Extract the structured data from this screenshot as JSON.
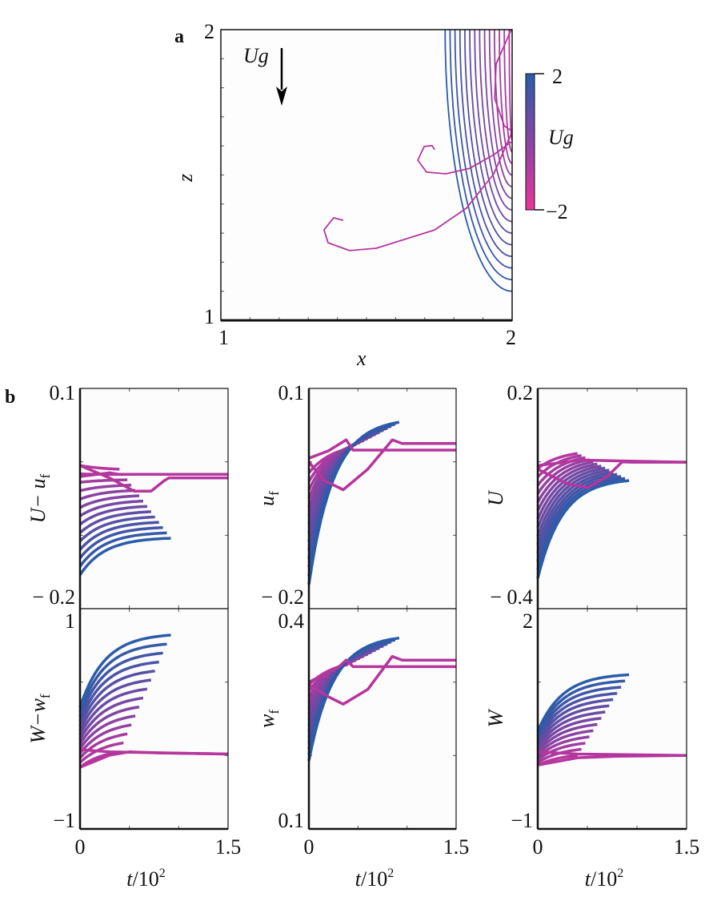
{
  "panel_labels": {
    "a": "a",
    "b": "b"
  },
  "colors": {
    "high": "#2b5ca8",
    "low": "#e8359a",
    "pink_curve": "#b5369d",
    "axes": "#111111"
  },
  "chart_data": [
    {
      "id": "a",
      "type": "line",
      "xlabel": "x",
      "ylabel": "z",
      "xlim": [
        1,
        2
      ],
      "ylim": [
        1,
        2
      ],
      "xtick_labels": [
        "1",
        "2"
      ],
      "ytick_labels": [
        "1",
        "2"
      ],
      "annotation": {
        "text": "Ug",
        "arrow": "down"
      },
      "colorbar": {
        "label": "Ug",
        "max_label": "2",
        "min_label": "−2",
        "range": [
          -2,
          2
        ]
      },
      "family": {
        "count": 14,
        "x_top": [
          1.77,
          1.99
        ],
        "z_right": [
          1.1,
          1.62
        ]
      },
      "series": [
        {
          "points": [
            [
              1.42,
              1.344
            ],
            [
              1.387,
              1.353
            ],
            [
              1.354,
              1.311
            ],
            [
              1.368,
              1.267
            ],
            [
              1.442,
              1.24
            ],
            [
              1.533,
              1.248
            ],
            [
              1.734,
              1.311
            ],
            [
              1.843,
              1.386
            ],
            [
              1.937,
              1.504
            ],
            [
              1.997,
              1.642
            ]
          ]
        },
        {
          "points": [
            [
              1.734,
              1.587
            ],
            [
              1.725,
              1.601
            ],
            [
              1.698,
              1.598
            ],
            [
              1.676,
              1.551
            ],
            [
              1.706,
              1.51
            ],
            [
              1.772,
              1.504
            ],
            [
              1.854,
              1.523
            ],
            [
              1.937,
              1.57
            ],
            [
              1.997,
              1.614
            ]
          ]
        },
        {
          "points": [
            [
              1.997,
              2.0
            ],
            [
              1.945,
              1.882
            ],
            [
              1.94,
              1.763
            ],
            [
              1.973,
              1.669
            ],
            [
              1.997,
              1.653
            ]
          ]
        }
      ]
    },
    {
      "id": "b1",
      "type": "line",
      "ylabel": "U− u_f",
      "ylabel_main": "U− u",
      "ylabel_sub": "f",
      "xlim": [
        0,
        1.5
      ],
      "ylim": [
        -0.2,
        0.1
      ],
      "ytick_labels": [
        "0.1",
        "− 0.2"
      ],
      "xtick_labels": [],
      "family": {
        "count": 14,
        "y_start": [
          -0.154,
          -0.005
        ],
        "y_end": [
          -0.104,
          -0.01
        ],
        "t_end": [
          0.92,
          0.4
        ]
      },
      "series": [
        {
          "points": [
            [
              0,
              -0.005
            ],
            [
              0.3,
              -0.022
            ],
            [
              0.55,
              -0.04
            ],
            [
              0.72,
              -0.04
            ],
            [
              0.85,
              -0.026
            ],
            [
              0.9,
              -0.022
            ],
            [
              1.5,
              -0.022
            ]
          ]
        },
        {
          "points": [
            [
              0,
              -0.02
            ],
            [
              0.3,
              -0.015
            ],
            [
              0.4,
              -0.017
            ],
            [
              1.5,
              -0.017
            ]
          ]
        }
      ]
    },
    {
      "id": "b2",
      "type": "line",
      "ylabel": "u_f",
      "ylabel_main": "u",
      "ylabel_sub": "f",
      "xlim": [
        0,
        1.5
      ],
      "ylim": [
        -0.2,
        0.1
      ],
      "ytick_labels": [
        "0.1",
        "− 0.2"
      ],
      "xtick_labels": [],
      "family": {
        "count": 14,
        "y_start": [
          -0.167,
          -0.015
        ],
        "y_end": [
          0.054,
          0.018
        ],
        "t_end": [
          0.92,
          0.4
        ]
      },
      "series": [
        {
          "points": [
            [
              0,
              0.0
            ],
            [
              0.15,
              -0.025
            ],
            [
              0.35,
              -0.038
            ],
            [
              0.6,
              -0.01
            ],
            [
              0.85,
              0.03
            ],
            [
              0.95,
              0.025
            ],
            [
              1.5,
              0.025
            ]
          ]
        },
        {
          "points": [
            [
              0,
              0.005
            ],
            [
              0.2,
              0.015
            ],
            [
              0.38,
              0.03
            ],
            [
              0.45,
              0.016
            ],
            [
              1.5,
              0.016
            ]
          ]
        }
      ]
    },
    {
      "id": "b3",
      "type": "line",
      "ylabel": "U",
      "ylabel_main": "U",
      "ylabel_sub": "",
      "xlim": [
        0,
        1.5
      ],
      "ylim": [
        -0.4,
        0.2
      ],
      "ytick_labels": [
        "0.2",
        "− 0.4"
      ],
      "xtick_labels": [],
      "family": {
        "count": 14,
        "y_start": [
          -0.317,
          -0.018
        ],
        "y_end": [
          -0.051,
          0.023
        ],
        "t_end": [
          0.92,
          0.4
        ]
      },
      "series": [
        {
          "points": [
            [
              0,
              -0.02
            ],
            [
              0.3,
              -0.06
            ],
            [
              0.5,
              -0.07
            ],
            [
              0.7,
              -0.04
            ],
            [
              0.85,
              0.0
            ],
            [
              0.95,
              -0.001
            ],
            [
              1.5,
              -0.001
            ]
          ]
        },
        {
          "points": [
            [
              0,
              -0.01
            ],
            [
              0.3,
              0.0
            ],
            [
              0.4,
              0.005
            ],
            [
              1.5,
              -0.001
            ]
          ]
        }
      ]
    },
    {
      "id": "b4",
      "type": "line",
      "ylabel": "W−w_f",
      "ylabel_main": "W−w",
      "ylabel_sub": "f",
      "xlabel": "t/10^2",
      "xlim": [
        0,
        1.5
      ],
      "ylim": [
        -1,
        1
      ],
      "ytick_labels": [
        "1",
        "−1"
      ],
      "xtick_labels": [
        "0",
        "1.5"
      ],
      "family": {
        "count": 14,
        "y_start": [
          0.105,
          -0.44
        ],
        "y_end": [
          0.76,
          -0.3
        ],
        "t_end": [
          0.92,
          0.4
        ]
      },
      "series": [
        {
          "points": [
            [
              0,
              -0.44
            ],
            [
              0.3,
              -0.33
            ],
            [
              0.5,
              -0.3
            ],
            [
              0.8,
              -0.31
            ],
            [
              1.5,
              -0.32
            ]
          ]
        },
        {
          "points": [
            [
              0,
              -0.28
            ],
            [
              0.3,
              -0.3
            ],
            [
              1.5,
              -0.32
            ]
          ]
        }
      ]
    },
    {
      "id": "b5",
      "type": "line",
      "ylabel": "w_f",
      "ylabel_main": "w",
      "ylabel_sub": "f",
      "xlabel": "t/10^2",
      "xlim": [
        0,
        1.5
      ],
      "ylim": [
        0.1,
        0.4
      ],
      "ytick_labels": [
        "0.4",
        "0.1"
      ],
      "xtick_labels": [
        "0",
        "1.5"
      ],
      "family": {
        "count": 14,
        "y_start": [
          0.193,
          0.296
        ],
        "y_end": [
          0.36,
          0.324
        ],
        "t_end": [
          0.92,
          0.4
        ]
      },
      "series": [
        {
          "points": [
            [
              0,
              0.296
            ],
            [
              0.2,
              0.28
            ],
            [
              0.35,
              0.27
            ],
            [
              0.6,
              0.29
            ],
            [
              0.85,
              0.335
            ],
            [
              0.95,
              0.33
            ],
            [
              1.5,
              0.33
            ]
          ]
        },
        {
          "points": [
            [
              0,
              0.3
            ],
            [
              0.3,
              0.32
            ],
            [
              0.38,
              0.33
            ],
            [
              0.45,
              0.321
            ],
            [
              1.5,
              0.321
            ]
          ]
        }
      ]
    },
    {
      "id": "b6",
      "type": "line",
      "ylabel": "W",
      "ylabel_main": "W",
      "ylabel_sub": "",
      "xlabel": "t/10^2",
      "xlim": [
        0,
        1.5
      ],
      "ylim": [
        -1,
        2
      ],
      "ytick_labels": [
        "2",
        "−1"
      ],
      "xtick_labels": [
        "0",
        "1.5"
      ],
      "family": {
        "count": 14,
        "y_start": [
          0.33,
          -0.13
        ],
        "y_end": [
          1.1,
          0.0
        ],
        "t_end": [
          0.92,
          0.4
        ]
      },
      "series": [
        {
          "points": [
            [
              0,
              -0.13
            ],
            [
              0.4,
              -0.03
            ],
            [
              0.8,
              -0.01
            ],
            [
              1.5,
              0.0
            ]
          ]
        },
        {
          "points": [
            [
              0,
              0.05
            ],
            [
              0.4,
              0.02
            ],
            [
              1.5,
              0.0
            ]
          ]
        }
      ]
    }
  ],
  "xlabel_parts": {
    "main": "t",
    "slash": "/10",
    "exp": "2"
  }
}
